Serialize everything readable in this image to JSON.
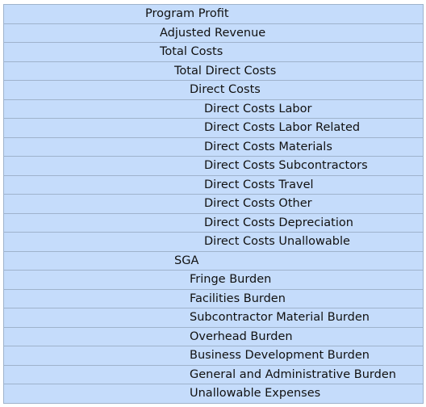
{
  "tree": {
    "rows": [
      "Program Profit",
      "Adjusted Revenue",
      "Total Costs",
      "Total Direct Costs",
      "Direct Costs",
      "Direct Costs Labor",
      "Direct Costs Labor Related",
      "Direct Costs Materials",
      "Direct Costs Subcontractors",
      "Direct Costs Travel",
      "Direct Costs Other",
      "Direct Costs Depreciation",
      "Direct Costs Unallowable",
      "SGA",
      "Fringe Burden",
      "Facilities Burden",
      "Subcontractor Material Burden",
      "Overhead Burden",
      "Business Development Burden",
      "General and Administrative Burden",
      "Unallowable Expenses"
    ]
  },
  "colors": {
    "row_background": "#c5dcfb",
    "grid_line": "#9fb3cc",
    "text": "#111111"
  }
}
